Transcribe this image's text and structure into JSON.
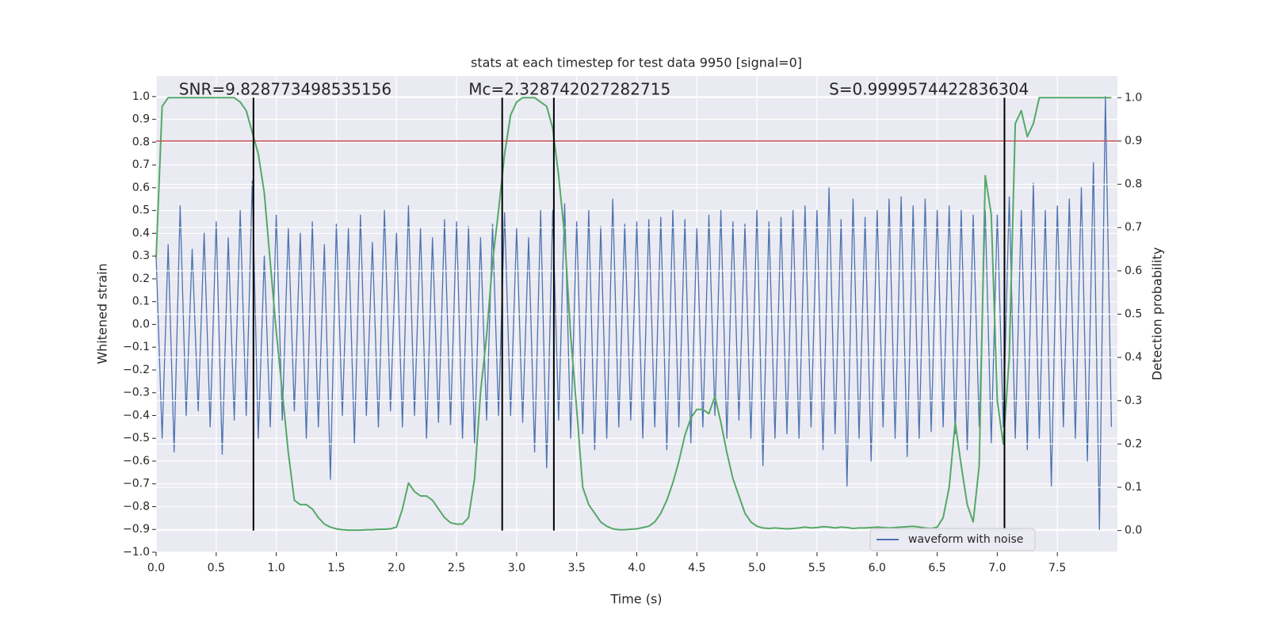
{
  "chart_data": {
    "type": "line",
    "title": "stats at each timestep for test data 9950 [signal=0]",
    "xlabel": "Time (s)",
    "ylabel": "Whitened strain",
    "y2label": "Detection probability",
    "annotations": [
      "SNR=9.828773498535156",
      "Mc=2.328742027282715",
      "S=0.9999574422836304"
    ],
    "annotation_x": [
      0.19,
      2.6,
      5.6
    ],
    "threshold": 0.9,
    "threshold_color": "#c44e52",
    "vlines": [
      0.81,
      2.88,
      3.31,
      7.06
    ],
    "vline_range": [
      0,
      1
    ],
    "vline_color": "#000000",
    "xlim": [
      0,
      8.0
    ],
    "ylim": [
      -1.0,
      1.09
    ],
    "y2lim": [
      -0.05,
      1.05
    ],
    "grid": true,
    "legend": "lower right",
    "xticks": [
      {
        "value": 0,
        "label": "0.0"
      },
      0.5,
      {
        "value": 1,
        "label": "1.0"
      },
      1.5,
      {
        "value": 2,
        "label": "2.0"
      },
      2.5,
      {
        "value": 3,
        "label": "3.0"
      },
      3.5,
      {
        "value": 4,
        "label": "4.0"
      },
      4.5,
      {
        "value": 5,
        "label": "5.0"
      },
      5.5,
      {
        "value": 6,
        "label": "6.0"
      },
      6.5,
      {
        "value": 7,
        "label": "7.0"
      },
      7.5
    ],
    "yticks": [
      {
        "value": -1.0,
        "label": "−1.0"
      },
      {
        "value": -0.9,
        "label": "−0.9"
      },
      {
        "value": -0.8,
        "label": "−0.8"
      },
      {
        "value": -0.7,
        "label": "−0.7"
      },
      {
        "value": -0.6,
        "label": "−0.6"
      },
      {
        "value": -0.5,
        "label": "−0.5"
      },
      {
        "value": -0.4,
        "label": "−0.4"
      },
      {
        "value": -0.3,
        "label": "−0.3"
      },
      {
        "value": -0.2,
        "label": "−0.2"
      },
      {
        "value": -0.1,
        "label": "−0.1"
      },
      {
        "value": 0,
        "label": "0.0"
      },
      0.1,
      0.2,
      0.3,
      0.4,
      0.5,
      0.6,
      0.7,
      0.8,
      0.9,
      {
        "value": 1.0,
        "label": "1.0"
      }
    ],
    "y2ticks": [
      {
        "value": 0,
        "label": "0.0"
      },
      0.1,
      0.2,
      0.3,
      0.4,
      0.5,
      0.6,
      0.7,
      0.8,
      0.9,
      {
        "value": 1.0,
        "label": "1.0"
      }
    ],
    "x": [
      0,
      0.05,
      0.1,
      0.15,
      0.2,
      0.25,
      0.3,
      0.35,
      0.4,
      0.45,
      0.5,
      0.55,
      0.6,
      0.65,
      0.7,
      0.75,
      0.8,
      0.85,
      0.9,
      0.95,
      1,
      1.05,
      1.1,
      1.15,
      1.2,
      1.25,
      1.3,
      1.35,
      1.4,
      1.45,
      1.5,
      1.55,
      1.6,
      1.65,
      1.7,
      1.75,
      1.8,
      1.85,
      1.9,
      1.95,
      2,
      2.05,
      2.1,
      2.15,
      2.2,
      2.25,
      2.3,
      2.35,
      2.4,
      2.45,
      2.5,
      2.55,
      2.6,
      2.65,
      2.7,
      2.75,
      2.8,
      2.85,
      2.9,
      2.95,
      3,
      3.05,
      3.1,
      3.15,
      3.2,
      3.25,
      3.3,
      3.35,
      3.4,
      3.45,
      3.5,
      3.55,
      3.6,
      3.65,
      3.7,
      3.75,
      3.8,
      3.85,
      3.9,
      3.95,
      4,
      4.05,
      4.1,
      4.15,
      4.2,
      4.25,
      4.3,
      4.35,
      4.4,
      4.45,
      4.5,
      4.55,
      4.6,
      4.65,
      4.7,
      4.75,
      4.8,
      4.85,
      4.9,
      4.95,
      5,
      5.05,
      5.1,
      5.15,
      5.2,
      5.25,
      5.3,
      5.35,
      5.4,
      5.45,
      5.5,
      5.55,
      5.6,
      5.65,
      5.7,
      5.75,
      5.8,
      5.85,
      5.9,
      5.95,
      6,
      6.05,
      6.1,
      6.15,
      6.2,
      6.25,
      6.3,
      6.35,
      6.4,
      6.45,
      6.5,
      6.55,
      6.6,
      6.65,
      6.7,
      6.75,
      6.8,
      6.85,
      6.9,
      6.95,
      7,
      7.05,
      7.1,
      7.15,
      7.2,
      7.25,
      7.3,
      7.35,
      7.4,
      7.45,
      7.5,
      7.55,
      7.6,
      7.65,
      7.7,
      7.75,
      7.8,
      7.85,
      7.9,
      7.95
    ],
    "series": [
      {
        "name": "waveform with noise",
        "color": "#4c72b0",
        "values": [
          0.3,
          -0.5,
          0.35,
          -0.56,
          0.52,
          -0.4,
          0.33,
          -0.38,
          0.4,
          -0.45,
          0.45,
          -0.57,
          0.38,
          -0.42,
          0.5,
          -0.4,
          0.63,
          -0.5,
          0.3,
          -0.45,
          0.48,
          -0.42,
          0.42,
          -0.38,
          0.4,
          -0.5,
          0.45,
          -0.45,
          0.35,
          -0.68,
          0.44,
          -0.4,
          0.42,
          -0.52,
          0.48,
          -0.4,
          0.36,
          -0.45,
          0.5,
          -0.38,
          0.4,
          -0.45,
          0.52,
          -0.4,
          0.42,
          -0.5,
          0.38,
          -0.43,
          0.46,
          -0.44,
          0.45,
          -0.5,
          0.43,
          -0.52,
          0.38,
          -0.42,
          0.44,
          -0.4,
          0.49,
          -0.4,
          0.42,
          -0.43,
          0.38,
          -0.56,
          0.5,
          -0.63,
          0.5,
          -0.42,
          0.53,
          -0.5,
          0.45,
          -0.48,
          0.5,
          -0.55,
          0.43,
          -0.5,
          0.55,
          -0.45,
          0.44,
          -0.42,
          0.45,
          -0.5,
          0.46,
          -0.45,
          0.47,
          -0.55,
          0.5,
          -0.45,
          0.46,
          -0.52,
          0.42,
          -0.45,
          0.48,
          -0.4,
          0.5,
          -0.5,
          0.45,
          -0.42,
          0.44,
          -0.5,
          0.5,
          -0.62,
          0.45,
          -0.5,
          0.47,
          -0.48,
          0.5,
          -0.5,
          0.52,
          -0.45,
          0.5,
          -0.55,
          0.6,
          -0.48,
          0.46,
          -0.71,
          0.55,
          -0.5,
          0.47,
          -0.6,
          0.5,
          -0.45,
          0.55,
          -0.5,
          0.56,
          -0.58,
          0.52,
          -0.5,
          0.55,
          -0.47,
          0.5,
          -0.45,
          0.52,
          -0.48,
          0.5,
          -0.55,
          0.48,
          -0.45,
          0.5,
          -0.52,
          0.48,
          -0.45,
          0.56,
          -0.5,
          0.5,
          -0.55,
          0.62,
          -0.5,
          0.5,
          -0.71,
          0.52,
          -0.45,
          0.55,
          -0.5,
          0.6,
          -0.6,
          0.71,
          -0.9,
          1.0,
          -0.45
        ]
      },
      {
        "color": "#55a868",
        "axis": "y2",
        "values": [
          0.63,
          0.98,
          1,
          1,
          1,
          1,
          1,
          1,
          1,
          1,
          1,
          1,
          1,
          1,
          0.99,
          0.97,
          0.92,
          0.87,
          0.78,
          0.62,
          0.46,
          0.32,
          0.18,
          0.07,
          0.06,
          0.06,
          0.05,
          0.03,
          0.015,
          0.008,
          0.004,
          0.002,
          0.001,
          0.001,
          0.001,
          0.002,
          0.002,
          0.003,
          0.003,
          0.004,
          0.008,
          0.05,
          0.11,
          0.09,
          0.08,
          0.08,
          0.07,
          0.05,
          0.03,
          0.018,
          0.015,
          0.015,
          0.03,
          0.12,
          0.32,
          0.45,
          0.62,
          0.74,
          0.87,
          0.96,
          0.99,
          1,
          1,
          1,
          0.99,
          0.98,
          0.93,
          0.82,
          0.68,
          0.45,
          0.28,
          0.1,
          0.06,
          0.04,
          0.02,
          0.01,
          0.004,
          0.002,
          0.002,
          0.003,
          0.004,
          0.007,
          0.01,
          0.02,
          0.04,
          0.07,
          0.11,
          0.16,
          0.22,
          0.26,
          0.28,
          0.28,
          0.27,
          0.31,
          0.25,
          0.18,
          0.12,
          0.08,
          0.04,
          0.02,
          0.01,
          0.006,
          0.005,
          0.006,
          0.005,
          0.004,
          0.005,
          0.006,
          0.008,
          0.006,
          0.007,
          0.009,
          0.008,
          0.006,
          0.008,
          0.007,
          0.005,
          0.006,
          0.006,
          0.007,
          0.008,
          0.007,
          0.006,
          0.007,
          0.008,
          0.009,
          0.01,
          0.008,
          0.006,
          0.005,
          0.008,
          0.03,
          0.1,
          0.25,
          0.15,
          0.06,
          0.02,
          0.15,
          0.82,
          0.73,
          0.3,
          0.2,
          0.4,
          0.94,
          0.97,
          0.91,
          0.94,
          1,
          1,
          1,
          1,
          1,
          1,
          1,
          1,
          1,
          1,
          1,
          1,
          1
        ]
      }
    ]
  }
}
